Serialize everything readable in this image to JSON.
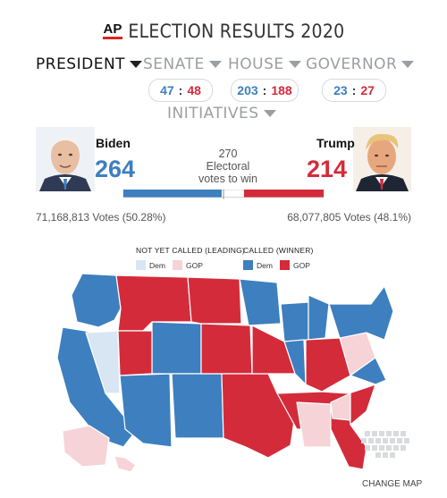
{
  "header": {
    "logo": "AP",
    "title": "ELECTION RESULTS 2020"
  },
  "tabs": {
    "president": "PRESIDENT",
    "senate": "SENATE",
    "house": "HOUSE",
    "governor": "GOVERNOR",
    "initiatives": "INITIATIVES"
  },
  "tallies": {
    "senate": {
      "dem": "47",
      "sep": ":",
      "gop": "48"
    },
    "house": {
      "dem": "203",
      "sep": ":",
      "gop": "188"
    },
    "governor": {
      "dem": "23",
      "sep": ":",
      "gop": "27"
    }
  },
  "race": {
    "dem": {
      "name": "Biden",
      "electoral": "264",
      "votes": "71,168,813 Votes (50.28%)",
      "color": "#3d7fbf"
    },
    "gop": {
      "name": "Trump",
      "electoral": "214",
      "votes": "68,077,805 Votes (48.1%)",
      "color": "#d42b3a"
    },
    "threshold": {
      "number": "270",
      "line1": "Electoral",
      "line2": "votes to win"
    },
    "bar": {
      "total": 538,
      "dem_ev": 264,
      "gop_ev": 214
    }
  },
  "legend": {
    "not_called_label": "NOT YET CALLED (LEADING)",
    "called_label": "CALLED (WINNER)",
    "dem": "Dem",
    "gop": "GOP",
    "colors": {
      "dem_called": "#3d7fbf",
      "gop_called": "#d42b3a",
      "dem_leading": "#d8e6f3",
      "gop_leading": "#f6d3d6"
    }
  },
  "map_footer": {
    "change_map": "CHANGE MAP"
  }
}
